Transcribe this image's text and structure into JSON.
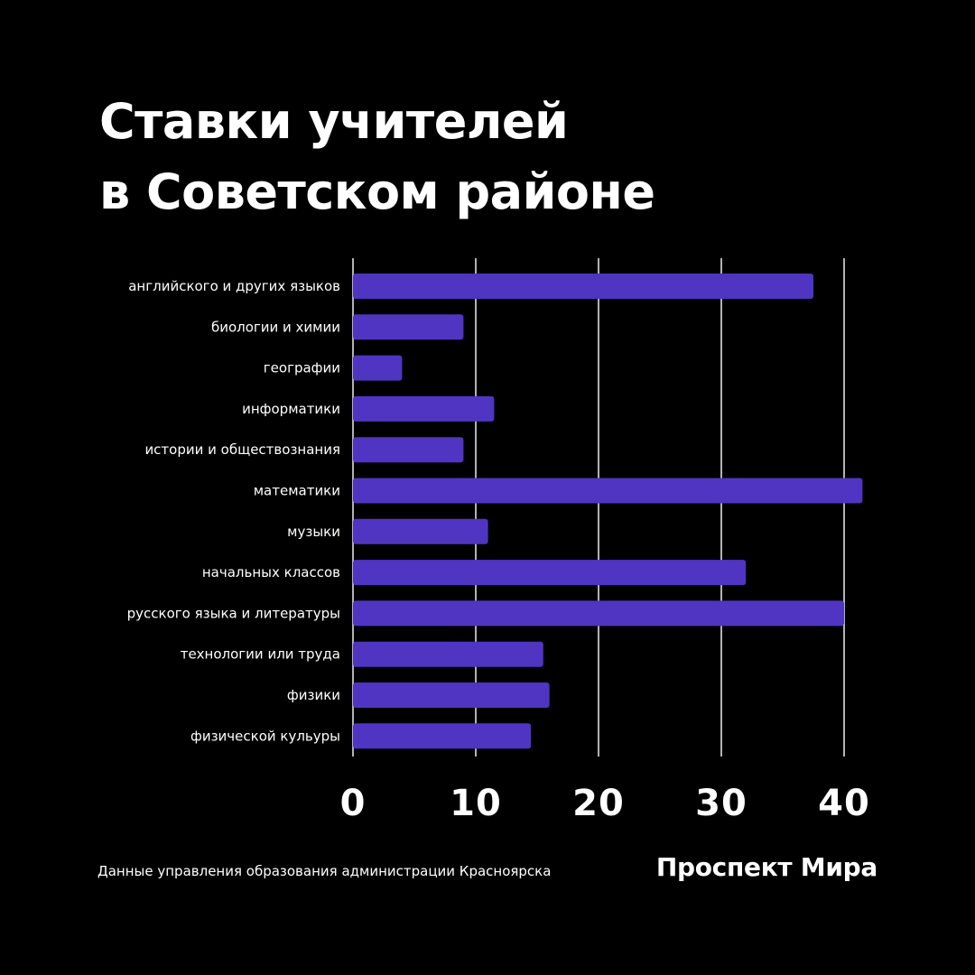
{
  "title": {
    "line1": "Ставки учителей",
    "line2": "в Советском районе"
  },
  "footer": {
    "source": "Данные управления образования администрации Красноярска",
    "brand": "Проспект Мира"
  },
  "colors": {
    "background": "#000000",
    "bar": "#4f35c2",
    "text": "#ffffff",
    "gridline": "#ffffff"
  },
  "chart_data": {
    "type": "bar",
    "orientation": "horizontal",
    "title": "Ставки учителей в Советском районе",
    "xlabel": "",
    "ylabel": "",
    "xlim": [
      0,
      40
    ],
    "x_ticks": [
      0,
      10,
      20,
      30,
      40
    ],
    "grid": true,
    "categories": [
      "английского и других языков",
      "биологии и химии",
      "географии",
      "информатики",
      "истории и обществознания",
      "математики",
      "музыки",
      "начальных классов",
      "русского языка и литературы",
      "технологии или труда",
      "физики",
      "физической кульуры"
    ],
    "values": [
      37.5,
      9,
      4,
      11.5,
      9,
      41.5,
      11,
      32,
      40,
      15.5,
      16,
      14.5
    ]
  }
}
